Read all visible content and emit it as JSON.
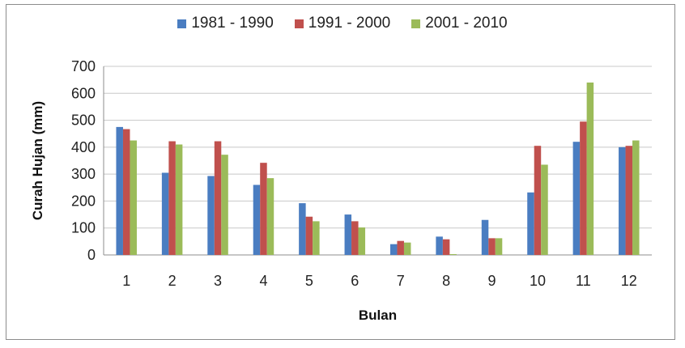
{
  "chart_data": {
    "type": "bar",
    "title": "",
    "xlabel": "Bulan",
    "ylabel": "Curah Hujan (mm)",
    "ylim": [
      0,
      700
    ],
    "yticks": [
      0,
      100,
      200,
      300,
      400,
      500,
      600,
      700
    ],
    "grid": true,
    "legend_position": "top",
    "categories": [
      "1",
      "2",
      "3",
      "4",
      "5",
      "6",
      "7",
      "8",
      "9",
      "10",
      "11",
      "12"
    ],
    "series": [
      {
        "name": "1981 - 1990",
        "color": "#4a7dc1",
        "values": [
          475,
          305,
          293,
          260,
          192,
          150,
          40,
          68,
          130,
          232,
          420,
          400
        ]
      },
      {
        "name": "1991 - 2000",
        "color": "#c0504d",
        "values": [
          467,
          422,
          422,
          342,
          142,
          125,
          52,
          58,
          62,
          405,
          495,
          405
        ]
      },
      {
        "name": "2001 - 2010",
        "color": "#9bbb59",
        "values": [
          425,
          410,
          372,
          285,
          125,
          102,
          46,
          3,
          62,
          335,
          640,
          425
        ]
      }
    ]
  }
}
